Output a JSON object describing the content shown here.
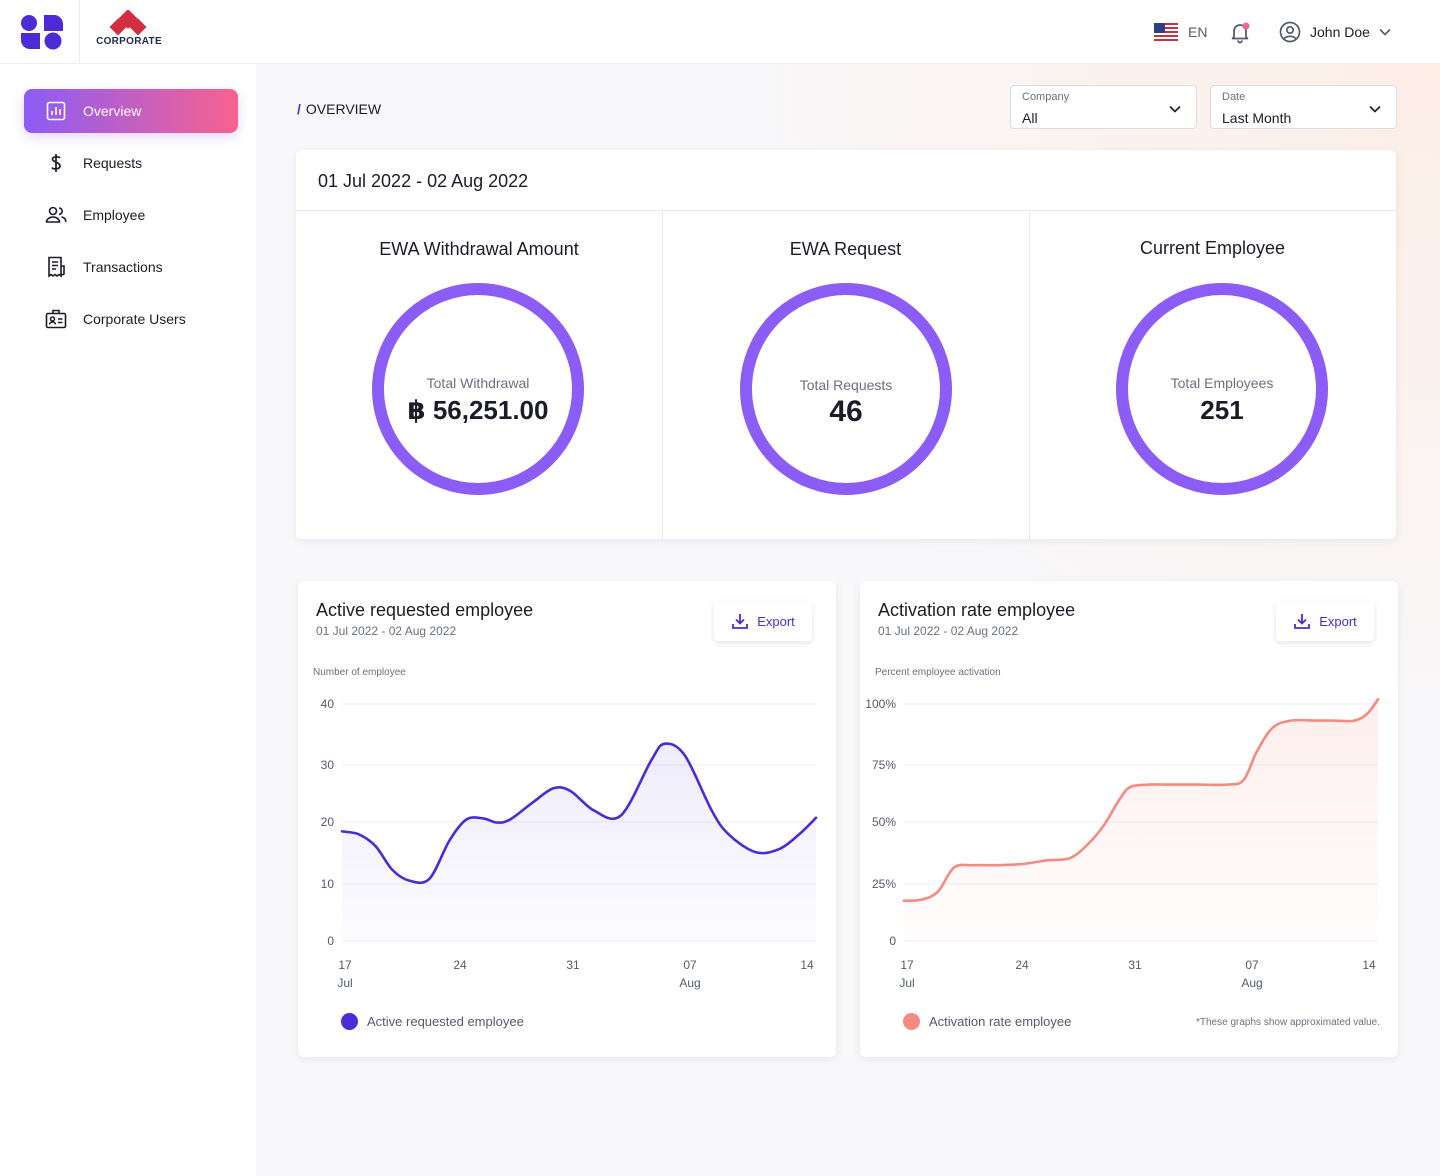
{
  "header": {
    "corporate_label": "CORPORATE",
    "language": "EN",
    "user_name": "John Doe",
    "colors": {
      "brand": "#4c2ad6",
      "notification_dot": "#f8628f",
      "corp_red": "#d32f3f"
    }
  },
  "sidebar": {
    "items": [
      {
        "label": "Overview",
        "icon": "chart-icon",
        "active": true
      },
      {
        "label": "Requests",
        "icon": "dollar-icon",
        "active": false
      },
      {
        "label": "Employee",
        "icon": "users-icon",
        "active": false
      },
      {
        "label": "Transactions",
        "icon": "receipt-icon",
        "active": false
      },
      {
        "label": "Corporate Users",
        "icon": "id-badge-icon",
        "active": false
      }
    ]
  },
  "breadcrumb": {
    "current": "OVERVIEW"
  },
  "filters": {
    "company": {
      "label": "Company",
      "value": "All"
    },
    "date": {
      "label": "Date",
      "value": "Last Month"
    }
  },
  "summary": {
    "date_range": "01 Jul 2022 - 02 Aug 2022",
    "stats": [
      {
        "title": "EWA Withdrawal Amount",
        "label": "Total Withdrawal",
        "value": "฿ 56,251.00"
      },
      {
        "title": "EWA Request",
        "label": "Total Requests",
        "value": "46"
      },
      {
        "title": "Current Employee",
        "label": "Total Employees",
        "value": "251"
      }
    ],
    "ring_color": "#8b5cf6"
  },
  "charts": {
    "active_requested": {
      "title": "Active requested employee",
      "subtitle": "01 Jul 2022 - 02 Aug 2022",
      "export_label": "Export",
      "legend": "Active requested employee",
      "color": "#4c2ad6"
    },
    "activation_rate": {
      "title": "Activation rate employee",
      "subtitle": "01 Jul 2022 - 02 Aug 2022",
      "export_label": "Export",
      "legend": "Activation rate employee",
      "footnote": "*These graphs show approximated value.",
      "color": "#f58a80"
    }
  },
  "chart_data": [
    {
      "type": "area",
      "title": "Active requested employee",
      "ylabel": "Number of employee",
      "xlabel": "",
      "x_ticks": [
        {
          "day": "17",
          "month": "Jul"
        },
        {
          "day": "24",
          "month": ""
        },
        {
          "day": "31",
          "month": ""
        },
        {
          "day": "07",
          "month": "Aug"
        },
        {
          "day": "14",
          "month": ""
        }
      ],
      "y_ticks": [
        "0",
        "10",
        "20",
        "30",
        "40"
      ],
      "ylim": [
        0,
        40
      ],
      "grid": true,
      "series": [
        {
          "name": "Active requested employee",
          "x": [
            0,
            0.5,
            1,
            1.5,
            2,
            2.6,
            3.2,
            3.7,
            4.2,
            4.6,
            5,
            5.7,
            6.3,
            6.8,
            7.5,
            8.3,
            9.2,
            9.6,
            10.2,
            11,
            11.5,
            12.3,
            13,
            13.6,
            14.1
          ],
          "y": [
            18.5,
            18,
            16,
            12,
            10.2,
            10.5,
            17,
            20.5,
            20.7,
            20,
            20.5,
            23.5,
            25.8,
            25.3,
            22,
            21.2,
            30.5,
            33.3,
            31.3,
            22,
            18,
            15,
            15.5,
            18,
            20.8
          ]
        }
      ],
      "legend_position": "bottom-left"
    },
    {
      "type": "area",
      "title": "Activation rate employee",
      "ylabel": "Percent employee activation",
      "xlabel": "",
      "x_ticks": [
        {
          "day": "17",
          "month": "Jul"
        },
        {
          "day": "24",
          "month": ""
        },
        {
          "day": "31",
          "month": ""
        },
        {
          "day": "07",
          "month": "Aug"
        },
        {
          "day": "14",
          "month": ""
        }
      ],
      "y_ticks": [
        "0",
        "25%",
        "50%",
        "75%",
        "100%"
      ],
      "ylim": [
        0,
        100
      ],
      "grid": true,
      "series": [
        {
          "name": "Activation rate employee",
          "x": [
            0,
            0.7,
            1.3,
            1.9,
            2.6,
            3.5,
            4.5,
            5.4,
            6.3,
            7,
            7.6,
            8.2,
            8.6,
            9.3,
            10,
            11.2,
            12.3,
            12.9,
            13.4,
            14,
            14.7,
            15.6,
            16.2,
            17.1,
            17.6,
            18
          ],
          "y": [
            17,
            17.5,
            21,
            31,
            32,
            32,
            32.5,
            34,
            35,
            41,
            49,
            60,
            65,
            66,
            66,
            66,
            66,
            68,
            80,
            90,
            93,
            93,
            93,
            93,
            96,
            102
          ]
        }
      ],
      "legend_position": "bottom-left"
    }
  ]
}
